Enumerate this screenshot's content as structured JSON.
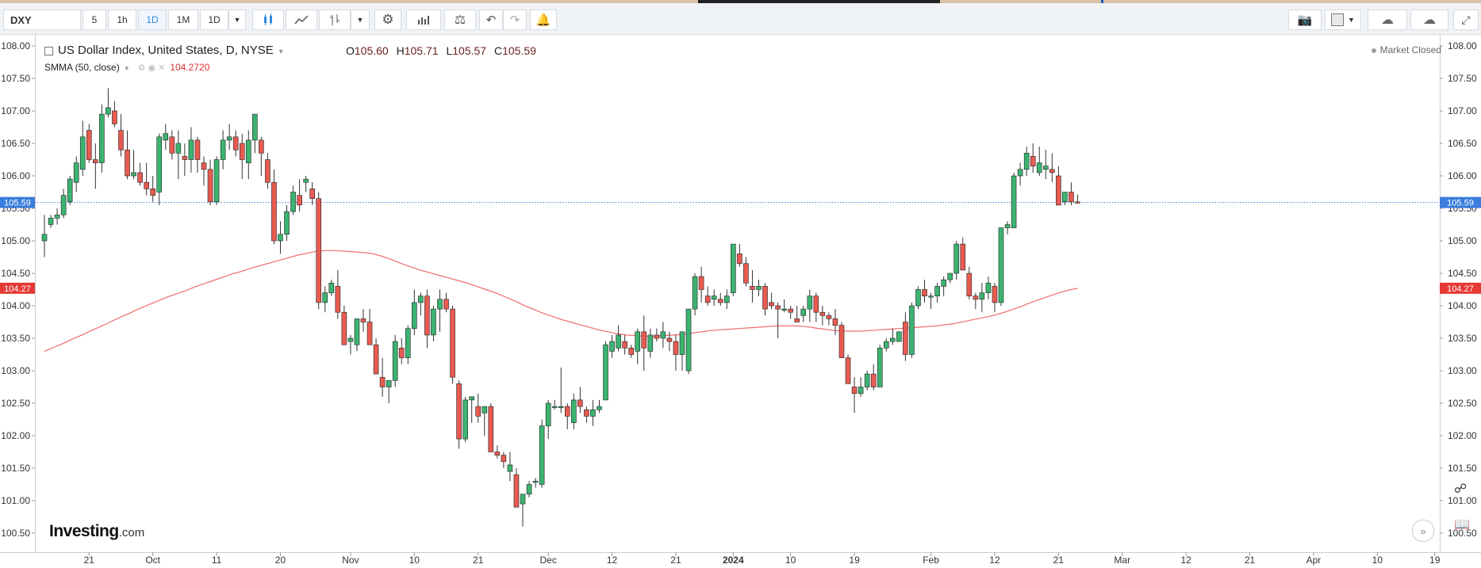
{
  "toolbar": {
    "symbol": "DXY",
    "intervals": [
      "5",
      "1h",
      "1D",
      "1M",
      "1D"
    ],
    "active_interval_index": 2,
    "icons": [
      "candle-icon",
      "line-chart-icon",
      "bar-chart-icon",
      "settings-gear-icon",
      "indicators-icon",
      "compare-scale-icon",
      "undo-icon",
      "redo-icon",
      "alert-bell-icon",
      "camera-icon",
      "color-square-icon",
      "cloud-load-icon",
      "cloud-save-icon",
      "fullscreen-icon"
    ]
  },
  "legend": {
    "title": "US Dollar Index, United States, D, NYSE",
    "open_label": "O",
    "open": "105.60",
    "high_label": "H",
    "high": "105.71",
    "low_label": "L",
    "low": "105.57",
    "close_label": "C",
    "close": "105.59",
    "smma_label": "SMMA (50, close)",
    "smma_value": "104.2720",
    "market_status": "Market Closed"
  },
  "price_tags": {
    "last_price": "105.59",
    "smma": "104.27"
  },
  "brand": {
    "name": "Investing",
    "suffix": ".com"
  },
  "colors": {
    "up": "#3cb371",
    "down": "#e85b51",
    "smma_line": "#f06a6a",
    "last_price_tag": "#3b7ddd",
    "smma_tag": "#e53935"
  },
  "chart_data": {
    "type": "candlestick",
    "y_ticks": [
      "100.50",
      "101.00",
      "101.50",
      "102.00",
      "102.50",
      "103.00",
      "103.50",
      "104.00",
      "104.50",
      "105.00",
      "105.50",
      "106.00",
      "106.50",
      "107.00",
      "107.50",
      "108.00"
    ],
    "ylim": [
      100.35,
      108.1
    ],
    "x_ticks": [
      "21",
      "Oct",
      "11",
      "20",
      "Nov",
      "10",
      "21",
      "Dec",
      "12",
      "21",
      "2024",
      "10",
      "19",
      "Feb",
      "12",
      "21",
      "Mar",
      "12",
      "21",
      "Apr",
      "10",
      "19"
    ],
    "x_tick_bars": [
      7,
      17,
      27,
      37,
      48,
      58,
      68,
      79,
      89,
      99,
      108,
      117,
      127,
      139,
      149,
      159,
      169,
      179,
      189,
      199,
      209,
      218
    ],
    "candles": [
      [
        105.0,
        105.4,
        104.75,
        105.1
      ],
      [
        105.25,
        105.4,
        105.2,
        105.35
      ],
      [
        105.35,
        105.5,
        105.25,
        105.4
      ],
      [
        105.4,
        105.8,
        105.35,
        105.7
      ],
      [
        105.6,
        106.0,
        105.55,
        105.95
      ],
      [
        105.9,
        106.3,
        105.75,
        106.2
      ],
      [
        106.1,
        106.85,
        106.0,
        106.6
      ],
      [
        106.7,
        106.8,
        106.2,
        106.25
      ],
      [
        106.25,
        106.5,
        105.8,
        106.2
      ],
      [
        106.2,
        107.1,
        106.05,
        106.95
      ],
      [
        106.95,
        107.35,
        106.9,
        107.05
      ],
      [
        107.0,
        107.15,
        106.75,
        106.8
      ],
      [
        106.7,
        106.95,
        106.3,
        106.4
      ],
      [
        106.4,
        106.7,
        105.95,
        106.0
      ],
      [
        106.0,
        106.4,
        105.95,
        106.05
      ],
      [
        106.05,
        106.2,
        105.85,
        105.9
      ],
      [
        105.9,
        106.2,
        105.7,
        105.8
      ],
      [
        105.8,
        106.0,
        105.6,
        105.7
      ],
      [
        105.75,
        106.65,
        105.55,
        106.6
      ],
      [
        106.55,
        106.8,
        106.4,
        106.65
      ],
      [
        106.6,
        106.7,
        106.25,
        106.35
      ],
      [
        106.35,
        106.7,
        105.95,
        106.5
      ],
      [
        106.3,
        106.5,
        106.0,
        106.25
      ],
      [
        106.25,
        106.75,
        106.05,
        106.55
      ],
      [
        106.55,
        106.6,
        106.05,
        106.25
      ],
      [
        106.2,
        106.3,
        105.85,
        106.1
      ],
      [
        106.1,
        106.25,
        105.55,
        105.6
      ],
      [
        105.6,
        106.3,
        105.55,
        106.25
      ],
      [
        106.25,
        106.7,
        106.1,
        106.55
      ],
      [
        106.55,
        106.8,
        106.4,
        106.6
      ],
      [
        106.6,
        106.7,
        106.3,
        106.4
      ],
      [
        106.5,
        106.65,
        105.95,
        106.25
      ],
      [
        106.2,
        106.7,
        105.95,
        106.55
      ],
      [
        106.55,
        106.95,
        106.35,
        106.95
      ],
      [
        106.55,
        106.6,
        106.0,
        106.35
      ],
      [
        106.25,
        106.35,
        105.8,
        105.9
      ],
      [
        105.9,
        106.1,
        104.95,
        105.0
      ],
      [
        105.0,
        105.3,
        104.8,
        105.1
      ],
      [
        105.1,
        105.55,
        105.0,
        105.45
      ],
      [
        105.45,
        105.85,
        105.4,
        105.75
      ],
      [
        105.7,
        105.95,
        105.45,
        105.55
      ],
      [
        105.9,
        106.0,
        105.75,
        105.95
      ],
      [
        105.8,
        105.9,
        105.55,
        105.65
      ],
      [
        105.65,
        105.75,
        103.95,
        104.05
      ],
      [
        104.05,
        104.3,
        103.9,
        104.2
      ],
      [
        104.2,
        104.4,
        104.15,
        104.35
      ],
      [
        104.3,
        104.55,
        103.8,
        103.9
      ],
      [
        103.9,
        104.0,
        103.4,
        103.4
      ],
      [
        103.45,
        103.55,
        103.25,
        103.5
      ],
      [
        103.4,
        103.8,
        103.3,
        103.8
      ],
      [
        103.8,
        103.95,
        103.6,
        103.75
      ],
      [
        103.75,
        103.95,
        103.4,
        103.4
      ],
      [
        103.4,
        103.5,
        102.95,
        102.95
      ],
      [
        102.9,
        103.2,
        102.6,
        102.75
      ],
      [
        102.75,
        102.85,
        102.5,
        102.85
      ],
      [
        102.85,
        103.55,
        102.75,
        103.45
      ],
      [
        103.35,
        103.5,
        103.1,
        103.2
      ],
      [
        103.2,
        103.7,
        103.1,
        103.65
      ],
      [
        103.65,
        104.25,
        103.55,
        104.05
      ],
      [
        104.05,
        104.2,
        103.85,
        104.15
      ],
      [
        104.15,
        104.25,
        103.35,
        103.55
      ],
      [
        103.55,
        104.0,
        103.45,
        103.95
      ],
      [
        103.95,
        104.25,
        103.6,
        104.1
      ],
      [
        104.1,
        104.2,
        103.9,
        103.95
      ],
      [
        103.95,
        104.0,
        102.8,
        102.9
      ],
      [
        102.8,
        102.85,
        101.8,
        101.95
      ],
      [
        101.95,
        102.6,
        101.9,
        102.55
      ],
      [
        102.55,
        102.6,
        102.2,
        102.6
      ],
      [
        102.45,
        102.65,
        102.2,
        102.3
      ],
      [
        102.35,
        102.45,
        102.0,
        102.45
      ],
      [
        102.45,
        102.5,
        101.75,
        101.75
      ],
      [
        101.75,
        101.85,
        101.65,
        101.7
      ],
      [
        101.7,
        101.75,
        101.5,
        101.6
      ],
      [
        101.45,
        101.75,
        101.3,
        101.55
      ],
      [
        101.4,
        101.5,
        100.9,
        100.9
      ],
      [
        100.95,
        101.1,
        100.6,
        101.1
      ],
      [
        101.1,
        101.3,
        101.05,
        101.25
      ],
      [
        101.3,
        101.35,
        101.2,
        101.3
      ],
      [
        101.25,
        102.25,
        101.2,
        102.15
      ],
      [
        102.15,
        102.55,
        101.95,
        102.5
      ],
      [
        102.45,
        102.55,
        102.4,
        102.45
      ],
      [
        102.45,
        103.05,
        102.35,
        102.45
      ],
      [
        102.45,
        102.5,
        102.1,
        102.3
      ],
      [
        102.2,
        102.65,
        102.1,
        102.55
      ],
      [
        102.55,
        102.75,
        102.35,
        102.45
      ],
      [
        102.4,
        102.45,
        102.2,
        102.3
      ],
      [
        102.3,
        102.55,
        102.15,
        102.4
      ],
      [
        102.4,
        102.55,
        102.35,
        102.45
      ],
      [
        102.55,
        103.45,
        102.55,
        103.4
      ],
      [
        103.3,
        103.55,
        103.2,
        103.45
      ],
      [
        103.35,
        103.7,
        103.3,
        103.55
      ],
      [
        103.45,
        103.55,
        103.25,
        103.35
      ],
      [
        103.35,
        103.4,
        103.2,
        103.25
      ],
      [
        103.3,
        103.65,
        103.1,
        103.6
      ],
      [
        103.6,
        103.85,
        103.0,
        103.35
      ],
      [
        103.3,
        103.65,
        103.2,
        103.55
      ],
      [
        103.55,
        103.65,
        103.45,
        103.5
      ],
      [
        103.5,
        103.75,
        103.35,
        103.6
      ],
      [
        103.5,
        103.6,
        103.3,
        103.45
      ],
      [
        103.45,
        103.55,
        103.0,
        103.25
      ],
      [
        103.25,
        103.6,
        103.0,
        103.6
      ],
      [
        103.0,
        103.9,
        102.95,
        103.95
      ],
      [
        103.95,
        104.5,
        103.85,
        104.45
      ],
      [
        104.45,
        104.6,
        104.05,
        104.25
      ],
      [
        104.15,
        104.3,
        104.0,
        104.05
      ],
      [
        104.1,
        104.25,
        104.0,
        104.15
      ],
      [
        104.1,
        104.2,
        104.0,
        104.05
      ],
      [
        104.05,
        104.25,
        103.95,
        104.15
      ],
      [
        104.2,
        104.95,
        104.15,
        104.95
      ],
      [
        104.8,
        104.95,
        104.6,
        104.65
      ],
      [
        104.65,
        104.75,
        104.3,
        104.35
      ],
      [
        104.3,
        104.55,
        104.05,
        104.25
      ],
      [
        104.25,
        104.4,
        104.15,
        104.3
      ],
      [
        104.3,
        104.35,
        103.85,
        103.95
      ],
      [
        104.05,
        104.2,
        103.95,
        104.0
      ],
      [
        104.0,
        104.05,
        103.5,
        103.95
      ],
      [
        103.95,
        104.1,
        103.9,
        103.95
      ],
      [
        103.95,
        104.0,
        103.8,
        103.9
      ],
      [
        103.8,
        104.0,
        103.75,
        103.75
      ],
      [
        103.85,
        104.0,
        103.75,
        103.95
      ],
      [
        103.95,
        104.25,
        103.75,
        104.15
      ],
      [
        104.15,
        104.2,
        103.75,
        103.9
      ],
      [
        103.9,
        104.0,
        103.7,
        103.85
      ],
      [
        103.85,
        103.9,
        103.7,
        103.8
      ],
      [
        103.8,
        103.95,
        103.55,
        103.7
      ],
      [
        103.7,
        103.75,
        103.2,
        103.2
      ],
      [
        103.2,
        103.25,
        102.8,
        102.8
      ],
      [
        102.75,
        102.9,
        102.35,
        102.65
      ],
      [
        102.65,
        102.9,
        102.6,
        102.75
      ],
      [
        102.75,
        103.0,
        102.7,
        102.95
      ],
      [
        102.95,
        103.1,
        102.7,
        102.75
      ],
      [
        102.75,
        103.4,
        102.75,
        103.35
      ],
      [
        103.35,
        103.5,
        103.3,
        103.45
      ],
      [
        103.45,
        103.65,
        103.4,
        103.5
      ],
      [
        103.45,
        103.6,
        103.45,
        103.6
      ],
      [
        103.75,
        103.9,
        103.15,
        103.25
      ],
      [
        103.25,
        104.05,
        103.2,
        104.0
      ],
      [
        104.0,
        104.3,
        103.95,
        104.25
      ],
      [
        104.25,
        104.4,
        104.05,
        104.15
      ],
      [
        104.15,
        104.2,
        103.95,
        104.15
      ],
      [
        104.15,
        104.35,
        104.05,
        104.3
      ],
      [
        104.3,
        104.45,
        104.15,
        104.4
      ],
      [
        104.4,
        104.5,
        104.35,
        104.5
      ],
      [
        104.5,
        105.0,
        104.4,
        104.95
      ],
      [
        104.95,
        105.05,
        104.55,
        104.55
      ],
      [
        104.5,
        104.6,
        104.1,
        104.15
      ],
      [
        104.15,
        104.2,
        103.95,
        104.1
      ],
      [
        104.1,
        104.35,
        103.9,
        104.2
      ],
      [
        104.2,
        104.45,
        104.1,
        104.35
      ],
      [
        104.3,
        104.35,
        103.9,
        104.05
      ],
      [
        104.05,
        105.2,
        104.0,
        105.2
      ],
      [
        105.2,
        105.3,
        105.1,
        105.25
      ],
      [
        105.2,
        106.05,
        105.2,
        106.0
      ],
      [
        106.0,
        106.2,
        105.85,
        106.1
      ],
      [
        106.1,
        106.45,
        106.0,
        106.35
      ],
      [
        106.3,
        106.5,
        106.05,
        106.15
      ],
      [
        106.05,
        106.45,
        106.0,
        106.2
      ],
      [
        106.1,
        106.4,
        105.95,
        106.15
      ],
      [
        106.1,
        106.35,
        105.9,
        106.05
      ],
      [
        106.0,
        106.15,
        105.55,
        105.55
      ],
      [
        105.6,
        105.75,
        105.55,
        105.75
      ],
      [
        105.75,
        105.9,
        105.55,
        105.6
      ],
      [
        105.6,
        105.71,
        105.57,
        105.59
      ]
    ],
    "smma_series": [
      103.3,
      103.36,
      103.42,
      103.49,
      103.55,
      103.62,
      103.68,
      103.75,
      103.82,
      103.88,
      103.95,
      104.01,
      104.07,
      104.13,
      104.18,
      104.23,
      104.29,
      104.34,
      104.39,
      104.44,
      104.49,
      104.53,
      104.58,
      104.62,
      104.66,
      104.7,
      104.74,
      104.78,
      104.81,
      104.84,
      104.85,
      104.85,
      104.84,
      104.83,
      104.82,
      104.8,
      104.76,
      104.71,
      104.65,
      104.6,
      104.55,
      104.51,
      104.47,
      104.43,
      104.39,
      104.35,
      104.3,
      104.25,
      104.2,
      104.14,
      104.08,
      104.01,
      103.95,
      103.89,
      103.84,
      103.79,
      103.75,
      103.71,
      103.67,
      103.63,
      103.6,
      103.57,
      103.55,
      103.54,
      103.53,
      103.53,
      103.54,
      103.55,
      103.56,
      103.58,
      103.6,
      103.62,
      103.63,
      103.64,
      103.65,
      103.66,
      103.67,
      103.68,
      103.69,
      103.69,
      103.69,
      103.68,
      103.66,
      103.64,
      103.62,
      103.61,
      103.61,
      103.61,
      103.62,
      103.63,
      103.64,
      103.65,
      103.66,
      103.67,
      103.68,
      103.69,
      103.71,
      103.73,
      103.76,
      103.79,
      103.82,
      103.85,
      103.89,
      103.94,
      103.99,
      104.05,
      104.1,
      104.15,
      104.2,
      104.24,
      104.27
    ],
    "smma_start_bar": 0,
    "last_price": 105.59,
    "smma_last": 104.27
  }
}
